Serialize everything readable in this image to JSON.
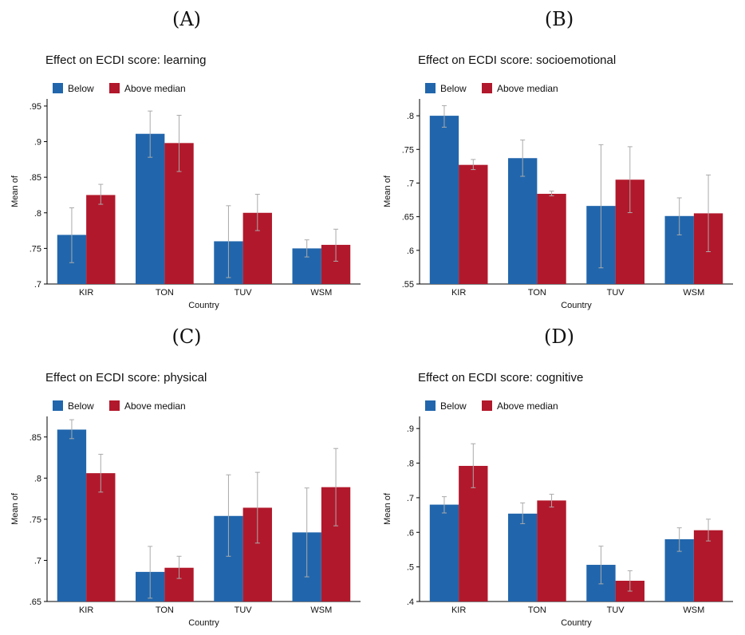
{
  "colors": {
    "below": "#2166ac",
    "above": "#b2182b",
    "errorbar": "#aaaaaa",
    "axis": "#000000"
  },
  "chart_data": [
    {
      "panel_label": "(A)",
      "type": "bar",
      "title": "Effect on ECDI score: learning",
      "xlabel": "Country",
      "ylabel": "Mean of",
      "legend": [
        "Below",
        "Above median"
      ],
      "legend_position": "top-left",
      "categories": [
        "KIR",
        "TON",
        "TUV",
        "WSM"
      ],
      "ylim": [
        0.7,
        0.96
      ],
      "yticks": [
        0.7,
        0.75,
        0.8,
        0.85,
        0.9,
        0.95
      ],
      "ytick_labels": [
        ".7",
        ".75",
        ".8",
        ".85",
        ".9",
        ".95"
      ],
      "series": [
        {
          "name": "Below",
          "values": [
            0.769,
            0.911,
            0.76,
            0.75
          ],
          "ci": [
            [
              0.73,
              0.807
            ],
            [
              0.878,
              0.943
            ],
            [
              0.709,
              0.81
            ],
            [
              0.738,
              0.762
            ]
          ]
        },
        {
          "name": "Above median",
          "values": [
            0.825,
            0.898,
            0.8,
            0.755
          ],
          "ci": [
            [
              0.812,
              0.84
            ],
            [
              0.858,
              0.937
            ],
            [
              0.775,
              0.826
            ],
            [
              0.732,
              0.777
            ]
          ]
        }
      ]
    },
    {
      "panel_label": "(B)",
      "type": "bar",
      "title": "Effect on ECDI score: socioemotional",
      "xlabel": "Country",
      "ylabel": "Mean of",
      "legend": [
        "Below",
        "Above median"
      ],
      "legend_position": "top-left",
      "categories": [
        "KIR",
        "TON",
        "TUV",
        "WSM"
      ],
      "ylim": [
        0.55,
        0.825
      ],
      "yticks": [
        0.55,
        0.6,
        0.65,
        0.7,
        0.75,
        0.8
      ],
      "ytick_labels": [
        ".55",
        ".6",
        ".65",
        ".7",
        ".75",
        ".8"
      ],
      "series": [
        {
          "name": "Below",
          "values": [
            0.8,
            0.737,
            0.666,
            0.651
          ],
          "ci": [
            [
              0.783,
              0.815
            ],
            [
              0.71,
              0.764
            ],
            [
              0.574,
              0.757
            ],
            [
              0.623,
              0.678
            ]
          ]
        },
        {
          "name": "Above median",
          "values": [
            0.727,
            0.684,
            0.705,
            0.655
          ],
          "ci": [
            [
              0.72,
              0.735
            ],
            [
              0.681,
              0.688
            ],
            [
              0.656,
              0.754
            ],
            [
              0.598,
              0.712
            ]
          ]
        }
      ]
    },
    {
      "panel_label": "(C)",
      "type": "bar",
      "title": "Effect on ECDI score: physical",
      "xlabel": "Country",
      "ylabel": "Mean of",
      "legend": [
        "Below",
        "Above median"
      ],
      "legend_position": "top-left",
      "categories": [
        "KIR",
        "TON",
        "TUV",
        "WSM"
      ],
      "ylim": [
        0.65,
        0.875
      ],
      "yticks": [
        0.65,
        0.7,
        0.75,
        0.8,
        0.85
      ],
      "ytick_labels": [
        ".65",
        ".7",
        ".75",
        ".8",
        ".85"
      ],
      "series": [
        {
          "name": "Below",
          "values": [
            0.859,
            0.686,
            0.754,
            0.734
          ],
          "ci": [
            [
              0.848,
              0.871
            ],
            [
              0.654,
              0.717
            ],
            [
              0.705,
              0.804
            ],
            [
              0.68,
              0.788
            ]
          ]
        },
        {
          "name": "Above median",
          "values": [
            0.806,
            0.691,
            0.764,
            0.789
          ],
          "ci": [
            [
              0.783,
              0.829
            ],
            [
              0.678,
              0.705
            ],
            [
              0.721,
              0.807
            ],
            [
              0.742,
              0.836
            ]
          ]
        }
      ]
    },
    {
      "panel_label": "(D)",
      "type": "bar",
      "title": "Effect on ECDI score: cognitive",
      "xlabel": "Country",
      "ylabel": "Mean of",
      "legend": [
        "Below",
        "Above median"
      ],
      "legend_position": "top-left",
      "categories": [
        "KIR",
        "TON",
        "TUV",
        "WSM"
      ],
      "ylim": [
        0.4,
        0.935
      ],
      "yticks": [
        0.4,
        0.5,
        0.6,
        0.7,
        0.8,
        0.9
      ],
      "ytick_labels": [
        ".4",
        ".5",
        ".6",
        ".7",
        ".8",
        ".9"
      ],
      "series": [
        {
          "name": "Below",
          "values": [
            0.68,
            0.654,
            0.506,
            0.58
          ],
          "ci": [
            [
              0.656,
              0.703
            ],
            [
              0.625,
              0.685
            ],
            [
              0.451,
              0.56
            ],
            [
              0.545,
              0.613
            ]
          ]
        },
        {
          "name": "Above median",
          "values": [
            0.792,
            0.692,
            0.46,
            0.606
          ],
          "ci": [
            [
              0.729,
              0.856
            ],
            [
              0.673,
              0.71
            ],
            [
              0.43,
              0.489
            ],
            [
              0.575,
              0.638
            ]
          ]
        }
      ]
    }
  ]
}
